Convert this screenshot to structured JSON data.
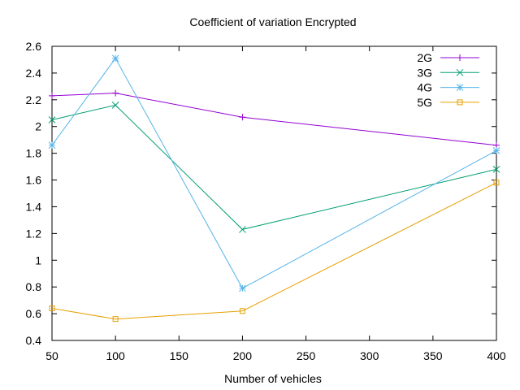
{
  "chart_data": {
    "type": "line",
    "title": "Coefficient of variation Encrypted",
    "xlabel": "Number of vehicles",
    "ylabel": "",
    "xlim": [
      50,
      400
    ],
    "ylim": [
      0.4,
      2.6
    ],
    "x_ticks": [
      50,
      100,
      150,
      200,
      250,
      300,
      350,
      400
    ],
    "x_tick_labels": [
      "50",
      "100",
      "150",
      "200",
      "250",
      "300",
      "350",
      "400"
    ],
    "y_ticks": [
      0.4,
      0.6,
      0.8,
      1.0,
      1.2,
      1.4,
      1.6,
      1.8,
      2.0,
      2.2,
      2.4,
      2.6
    ],
    "y_tick_labels": [
      "0.4",
      "0.6",
      "0.8",
      "1",
      "1.2",
      "1.4",
      "1.6",
      "1.8",
      "2",
      "2.2",
      "2.4",
      "2.6"
    ],
    "grid": false,
    "legend_position": "top-right",
    "x": [
      50,
      100,
      200,
      400
    ],
    "series": [
      {
        "name": "2G",
        "values": [
          2.23,
          2.25,
          2.07,
          1.86
        ],
        "color": "#9400d3",
        "marker": "plus"
      },
      {
        "name": "3G",
        "values": [
          2.05,
          2.16,
          1.23,
          1.68
        ],
        "color": "#009e73",
        "marker": "cross"
      },
      {
        "name": "4G",
        "values": [
          1.86,
          2.51,
          0.79,
          1.82
        ],
        "color": "#56b4e9",
        "marker": "star"
      },
      {
        "name": "5G",
        "values": [
          0.64,
          0.56,
          0.62,
          1.58
        ],
        "color": "#e69f00",
        "marker": "square"
      }
    ]
  }
}
